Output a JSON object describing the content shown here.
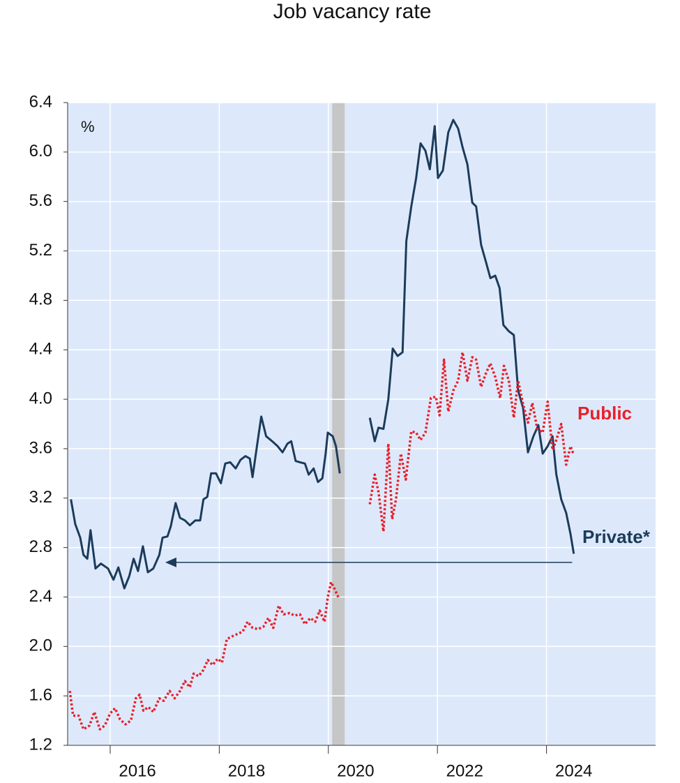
{
  "chart_data": {
    "type": "line",
    "title": "Job vacancy rate",
    "unit_label": "%",
    "xlim": [
      2015.22,
      2026.0
    ],
    "ylim": [
      1.2,
      6.4
    ],
    "yticks": [
      1.2,
      1.6,
      {
        "value": 2,
        "label": "2.0"
      },
      2.4,
      2.8,
      3.2,
      3.6,
      {
        "value": 4,
        "label": "4.0"
      },
      4.4,
      4.8,
      5.2,
      5.6,
      {
        "value": 6,
        "label": "6.0"
      },
      6.4
    ],
    "xticks": [
      2016,
      2018,
      2020,
      2022,
      2024
    ],
    "grid": true,
    "plot_background": "#dde9fb",
    "shaded_period": [
      2020.07,
      2020.3
    ],
    "arrow": {
      "x_from": 2024.47,
      "x_to": 2017.01,
      "y": 2.68,
      "color": "#1c3b5a"
    },
    "series": [
      {
        "name": "Private*",
        "color": "#1c3b5a",
        "dash": false,
        "x": [
          2015.28,
          2015.36,
          2015.45,
          2015.51,
          2015.58,
          2015.64,
          2015.73,
          2015.83,
          2015.96,
          2016.06,
          2016.15,
          2016.26,
          2016.35,
          2016.43,
          2016.51,
          2016.6,
          2016.69,
          2016.79,
          2016.9,
          2016.96,
          2017.05,
          2017.11,
          2017.2,
          2017.28,
          2017.37,
          2017.46,
          2017.56,
          2017.65,
          2017.71,
          2017.78,
          2017.85,
          2017.94,
          2018.03,
          2018.11,
          2018.2,
          2018.3,
          2018.39,
          2018.48,
          2018.56,
          2018.61,
          2018.69,
          2018.77,
          2018.86,
          2018.97,
          2019.07,
          2019.16,
          2019.25,
          2019.32,
          2019.4,
          2019.48,
          2019.57,
          2019.64,
          2019.73,
          2019.81,
          2019.89,
          2019.95,
          2019.99,
          2020.08,
          2020.14,
          2020.21,
          2020.5,
          2020.76,
          2020.85,
          2020.92,
          2021.01,
          2021.1,
          2021.18,
          2021.27,
          2021.36,
          2021.43,
          2021.52,
          2021.61,
          2021.69,
          2021.78,
          2021.86,
          2021.95,
          2022.01,
          2022.1,
          2022.2,
          2022.29,
          2022.38,
          2022.46,
          2022.55,
          2022.64,
          2022.71,
          2022.8,
          2022.89,
          2022.97,
          2023.06,
          2023.14,
          2023.21,
          2023.31,
          2023.4,
          2023.48,
          2023.57,
          2023.66,
          2023.76,
          2023.85,
          2023.93,
          2024.02,
          2024.11,
          2024.18,
          2024.27,
          2024.36,
          2024.44,
          2024.5
        ],
        "values": [
          3.19,
          2.99,
          2.88,
          2.74,
          2.71,
          2.94,
          2.63,
          2.67,
          2.63,
          2.54,
          2.64,
          2.47,
          2.57,
          2.71,
          2.61,
          2.81,
          2.6,
          2.63,
          2.74,
          2.88,
          2.89,
          2.97,
          3.16,
          3.04,
          3.02,
          2.98,
          3.02,
          3.02,
          3.19,
          3.21,
          3.4,
          3.4,
          3.32,
          3.48,
          3.49,
          3.44,
          3.51,
          3.54,
          3.52,
          3.37,
          3.62,
          3.86,
          3.7,
          3.66,
          3.62,
          3.57,
          3.64,
          3.66,
          3.5,
          3.49,
          3.48,
          3.39,
          3.44,
          3.33,
          3.36,
          3.56,
          3.73,
          3.7,
          3.62,
          3.4,
          null,
          3.85,
          3.66,
          3.77,
          3.76,
          4.0,
          4.41,
          4.35,
          4.38,
          5.28,
          5.56,
          5.79,
          6.07,
          6.01,
          5.86,
          6.21,
          5.79,
          5.85,
          6.16,
          6.26,
          6.19,
          6.04,
          5.9,
          5.59,
          5.56,
          5.25,
          5.11,
          4.98,
          5.0,
          4.9,
          4.6,
          4.55,
          4.52,
          4.07,
          3.93,
          3.57,
          3.7,
          3.79,
          3.56,
          3.62,
          3.7,
          3.39,
          3.19,
          3.08,
          2.91,
          2.75
        ]
      },
      {
        "name": "Public",
        "color": "#e8202a",
        "dash": true,
        "x": [
          2015.26,
          2015.32,
          2015.42,
          2015.51,
          2015.62,
          2015.71,
          2015.81,
          2015.9,
          2016.0,
          2016.09,
          2016.18,
          2016.28,
          2016.38,
          2016.47,
          2016.54,
          2016.61,
          2016.7,
          2016.79,
          2016.9,
          2016.98,
          2017.09,
          2017.18,
          2017.28,
          2017.37,
          2017.46,
          2017.53,
          2017.62,
          2017.71,
          2017.79,
          2017.88,
          2017.97,
          2018.05,
          2018.14,
          2018.23,
          2018.33,
          2018.43,
          2018.52,
          2018.61,
          2018.71,
          2018.81,
          2018.9,
          2018.99,
          2019.09,
          2019.18,
          2019.29,
          2019.38,
          2019.48,
          2019.57,
          2019.67,
          2019.76,
          2019.84,
          2019.93,
          2019.99,
          2020.05,
          2020.12,
          2020.19,
          2020.5,
          2020.76,
          2020.85,
          2020.92,
          2021.01,
          2021.1,
          2021.17,
          2021.24,
          2021.33,
          2021.42,
          2021.52,
          2021.61,
          2021.69,
          2021.78,
          2021.88,
          2021.97,
          2022.04,
          2022.12,
          2022.2,
          2022.29,
          2022.38,
          2022.46,
          2022.55,
          2022.64,
          2022.71,
          2022.8,
          2022.89,
          2022.97,
          2023.06,
          2023.15,
          2023.22,
          2023.31,
          2023.4,
          2023.48,
          2023.57,
          2023.66,
          2023.74,
          2023.83,
          2023.93,
          2024.02,
          2024.11,
          2024.18,
          2024.27,
          2024.36,
          2024.44,
          2024.5
        ],
        "values": [
          1.64,
          1.44,
          1.44,
          1.33,
          1.36,
          1.47,
          1.33,
          1.36,
          1.46,
          1.5,
          1.41,
          1.37,
          1.4,
          1.58,
          1.61,
          1.48,
          1.51,
          1.47,
          1.58,
          1.56,
          1.64,
          1.58,
          1.64,
          1.72,
          1.67,
          1.78,
          1.76,
          1.81,
          1.89,
          1.85,
          1.9,
          1.87,
          2.06,
          2.08,
          2.1,
          2.12,
          2.2,
          2.15,
          2.14,
          2.16,
          2.23,
          2.15,
          2.33,
          2.26,
          2.27,
          2.25,
          2.26,
          2.18,
          2.23,
          2.2,
          2.29,
          2.2,
          2.4,
          2.52,
          2.46,
          2.39,
          null,
          3.15,
          3.39,
          3.25,
          2.93,
          3.64,
          3.03,
          3.19,
          3.56,
          3.35,
          3.74,
          3.73,
          3.67,
          3.73,
          4.01,
          4.02,
          3.87,
          4.32,
          3.9,
          4.07,
          4.15,
          4.38,
          4.15,
          4.34,
          4.32,
          4.1,
          4.21,
          4.29,
          4.18,
          4.01,
          4.27,
          4.15,
          3.85,
          4.15,
          3.96,
          3.81,
          3.97,
          3.76,
          3.73,
          3.98,
          3.59,
          3.67,
          3.8,
          3.47,
          3.62,
          3.55
        ]
      }
    ]
  }
}
